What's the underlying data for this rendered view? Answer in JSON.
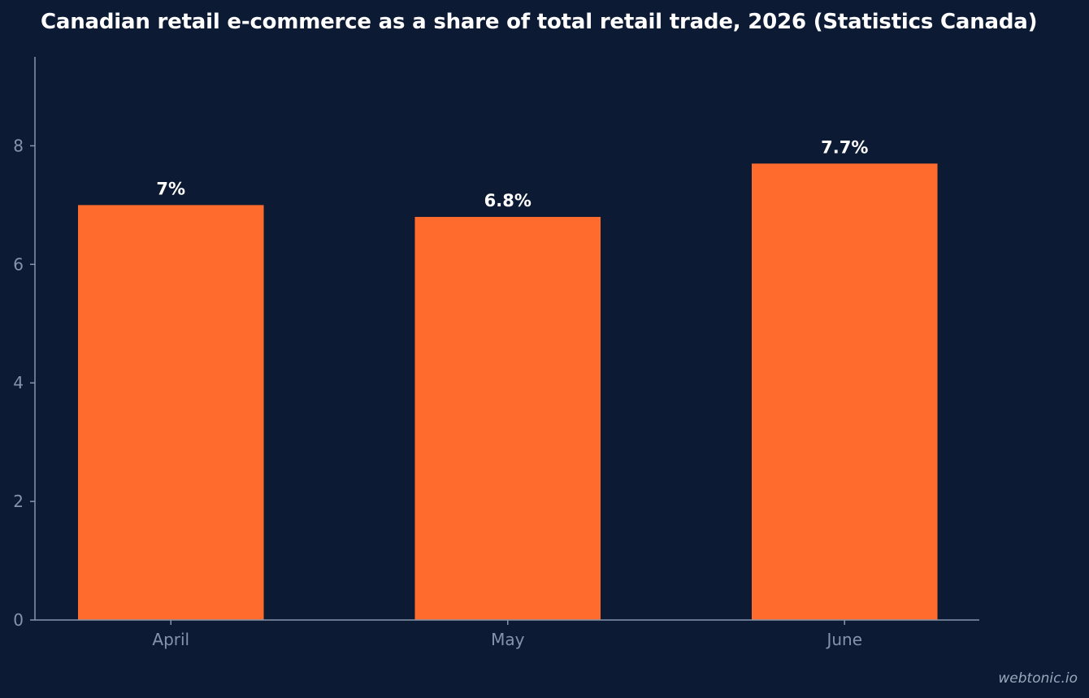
{
  "chart_data": {
    "type": "bar",
    "title": "Canadian retail e-commerce as a share of total retail trade, 2026 (Statistics Canada)",
    "categories": [
      "April",
      "May",
      "June"
    ],
    "values": [
      7,
      6.8,
      7.7
    ],
    "data_labels": [
      "7%",
      "6.8%",
      "7.7%"
    ],
    "xlabel": "",
    "ylabel": "",
    "ylim": [
      0,
      9.5
    ],
    "yticks": [
      0,
      2,
      4,
      6,
      8
    ],
    "ytick_labels": [
      "0",
      "2",
      "4",
      "6",
      "8"
    ],
    "grid": false,
    "legend": "none"
  },
  "colors": {
    "background": "#0c1b33",
    "bar": "#ff6b2d",
    "axis": "#8593ab",
    "tick_label": "#8593ab",
    "data_label": "#ffffff",
    "title": "#ffffff"
  },
  "watermark": "webtonic.io"
}
